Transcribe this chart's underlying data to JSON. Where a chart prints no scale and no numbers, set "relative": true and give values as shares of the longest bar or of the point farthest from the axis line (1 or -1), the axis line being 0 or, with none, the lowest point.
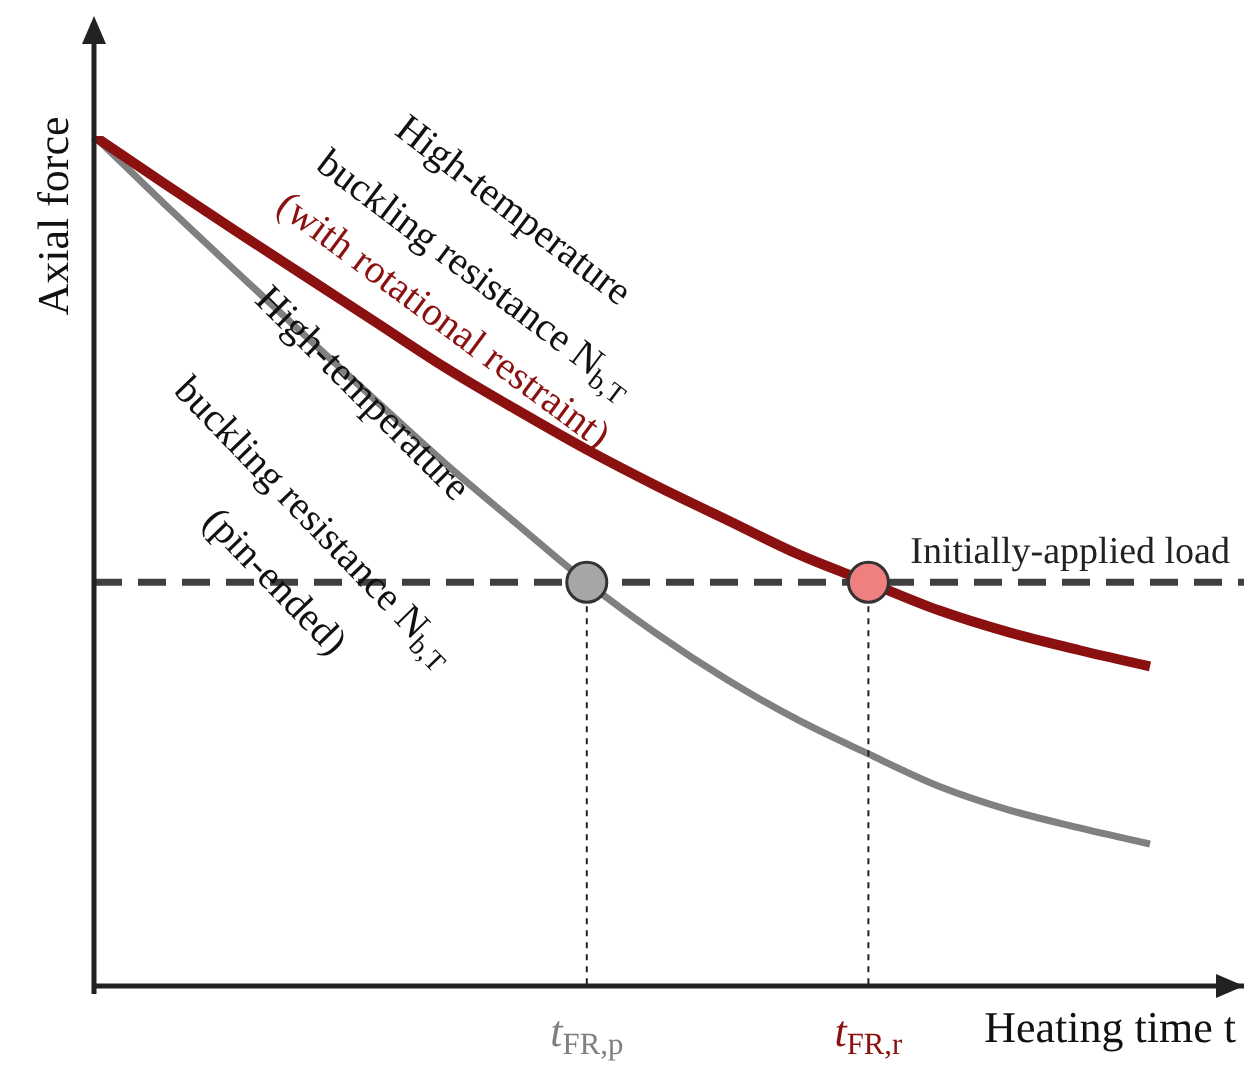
{
  "chart_data": {
    "type": "line",
    "relative": true,
    "xlabel": "Heating time t",
    "ylabel": "Axial force",
    "categories": [
      null,
      null,
      null,
      null,
      null,
      null,
      null,
      "t$_{FR,p}$",
      null,
      null,
      null,
      "t$_{FR,r}$",
      null,
      null,
      null,
      null
    ],
    "series": [
      {
        "color": "#808080",
        "values": [
          1,
          0.92,
          0.842,
          0.765,
          0.689,
          0.614,
          0.544,
          0.475,
          0.414,
          0.36,
          0.313,
          0.273,
          0.235,
          0.207,
          0.186,
          0.167
        ]
      },
      {
        "color": "#8b1010",
        "values": [
          1,
          0.944,
          0.889,
          0.835,
          0.781,
          0.727,
          0.678,
          0.631,
          0.588,
          0.548,
          0.508,
          0.475,
          0.442,
          0.416,
          0.395,
          0.376
        ]
      },
      {
        "type": "scatter",
        "marker": "circle",
        "color": "#a6a6a6",
        "values": [
          null,
          null,
          null,
          null,
          null,
          null,
          null,
          0.475,
          null,
          null,
          null,
          null,
          null,
          null,
          null,
          null
        ]
      },
      {
        "type": "scatter",
        "marker": "circle",
        "color": "#f08080",
        "values": [
          null,
          null,
          null,
          null,
          null,
          null,
          null,
          null,
          null,
          null,
          null,
          0.475,
          null,
          null,
          null,
          null
        ]
      }
    ],
    "ref_lines": [
      {
        "axis": "y",
        "value": 0.475,
        "label": "Initially-applied load",
        "color": "#404040",
        "line_style": "dashed"
      }
    ],
    "annotations": [
      "High-temperature",
      "buckling resistance N$_{b,T}$",
      "(with rotational restraint)",
      "High-temperature",
      "buckling resistance N$_{b,T}$",
      "(pin-ended)"
    ]
  }
}
